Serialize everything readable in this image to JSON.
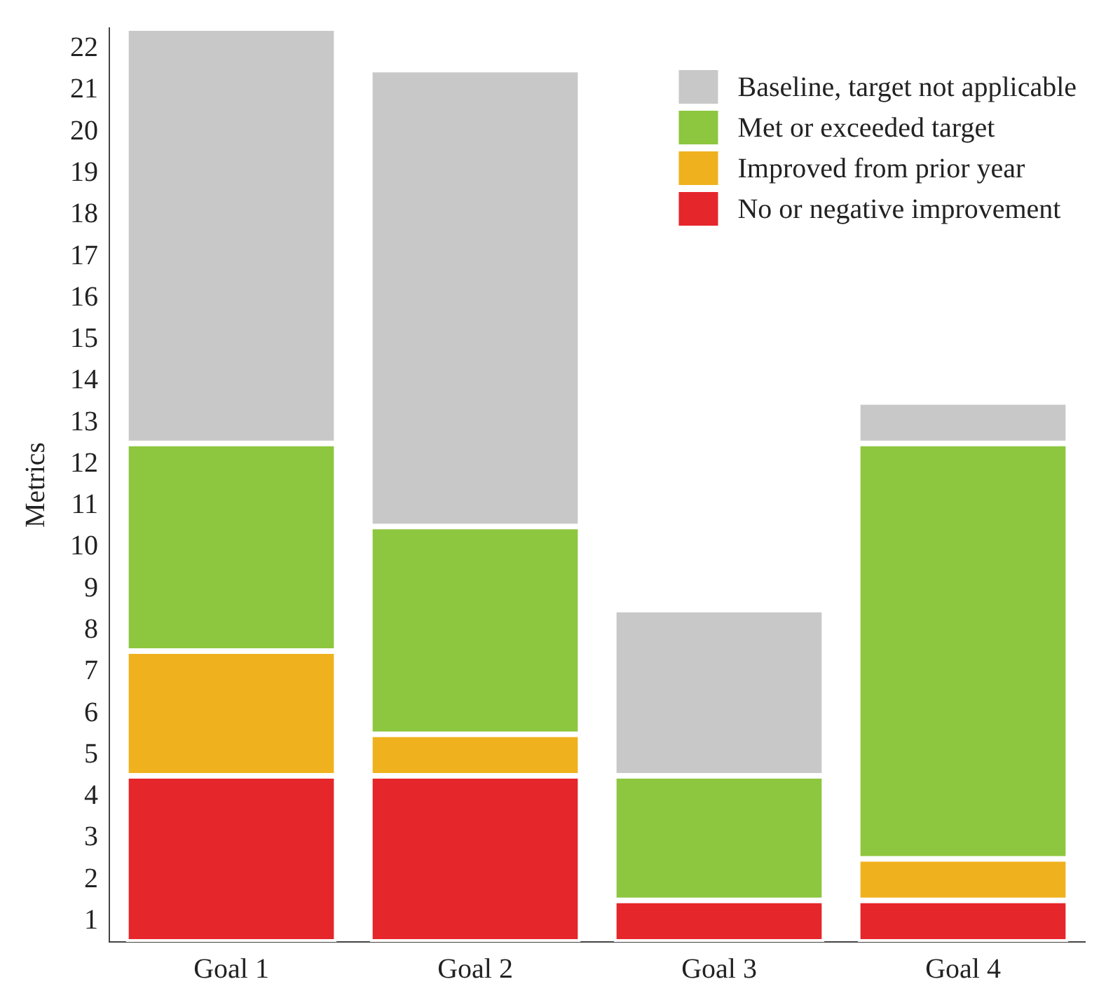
{
  "chart_data": {
    "type": "bar",
    "ylabel": "Metrics",
    "categories": [
      "Goal 1",
      "Goal 2",
      "Goal 3",
      "Goal 4"
    ],
    "stacked": true,
    "legend": "top right",
    "grid": false,
    "ylim": [
      0,
      22
    ],
    "yticks": [
      {
        "value": 0.5,
        "label": "1"
      },
      {
        "value": 1.5,
        "label": "2"
      },
      {
        "value": 2.5,
        "label": "3"
      },
      {
        "value": 3.5,
        "label": "4"
      },
      {
        "value": 4.5,
        "label": "5"
      },
      {
        "value": 5.5,
        "label": "6"
      },
      {
        "value": 6.5,
        "label": "7"
      },
      {
        "value": 7.5,
        "label": "8"
      },
      {
        "value": 8.5,
        "label": "9"
      },
      {
        "value": 9.5,
        "label": "10"
      },
      {
        "value": 10.5,
        "label": "11"
      },
      {
        "value": 11.5,
        "label": "12"
      },
      {
        "value": 12.5,
        "label": "13"
      },
      {
        "value": 13.5,
        "label": "14"
      },
      {
        "value": 14.5,
        "label": "15"
      },
      {
        "value": 15.5,
        "label": "16"
      },
      {
        "value": 16.5,
        "label": "17"
      },
      {
        "value": 17.5,
        "label": "18"
      },
      {
        "value": 18.5,
        "label": "19"
      },
      {
        "value": 19.5,
        "label": "20"
      },
      {
        "value": 20.5,
        "label": "21"
      },
      {
        "value": 21.5,
        "label": "22"
      }
    ],
    "series": [
      {
        "name": "No or negative improvement",
        "color": "#e5262b",
        "values": [
          4,
          4,
          1,
          1
        ]
      },
      {
        "name": "Improved from prior year",
        "color": "#f0b11e",
        "values": [
          3,
          1,
          0,
          1
        ]
      },
      {
        "name": "Met or exceeded target",
        "color": "#8dc63f",
        "values": [
          5,
          5,
          3,
          10
        ]
      },
      {
        "name": "Baseline, target not applicable",
        "color": "#c8c8c8",
        "values": [
          10,
          11,
          4,
          1
        ]
      }
    ]
  }
}
